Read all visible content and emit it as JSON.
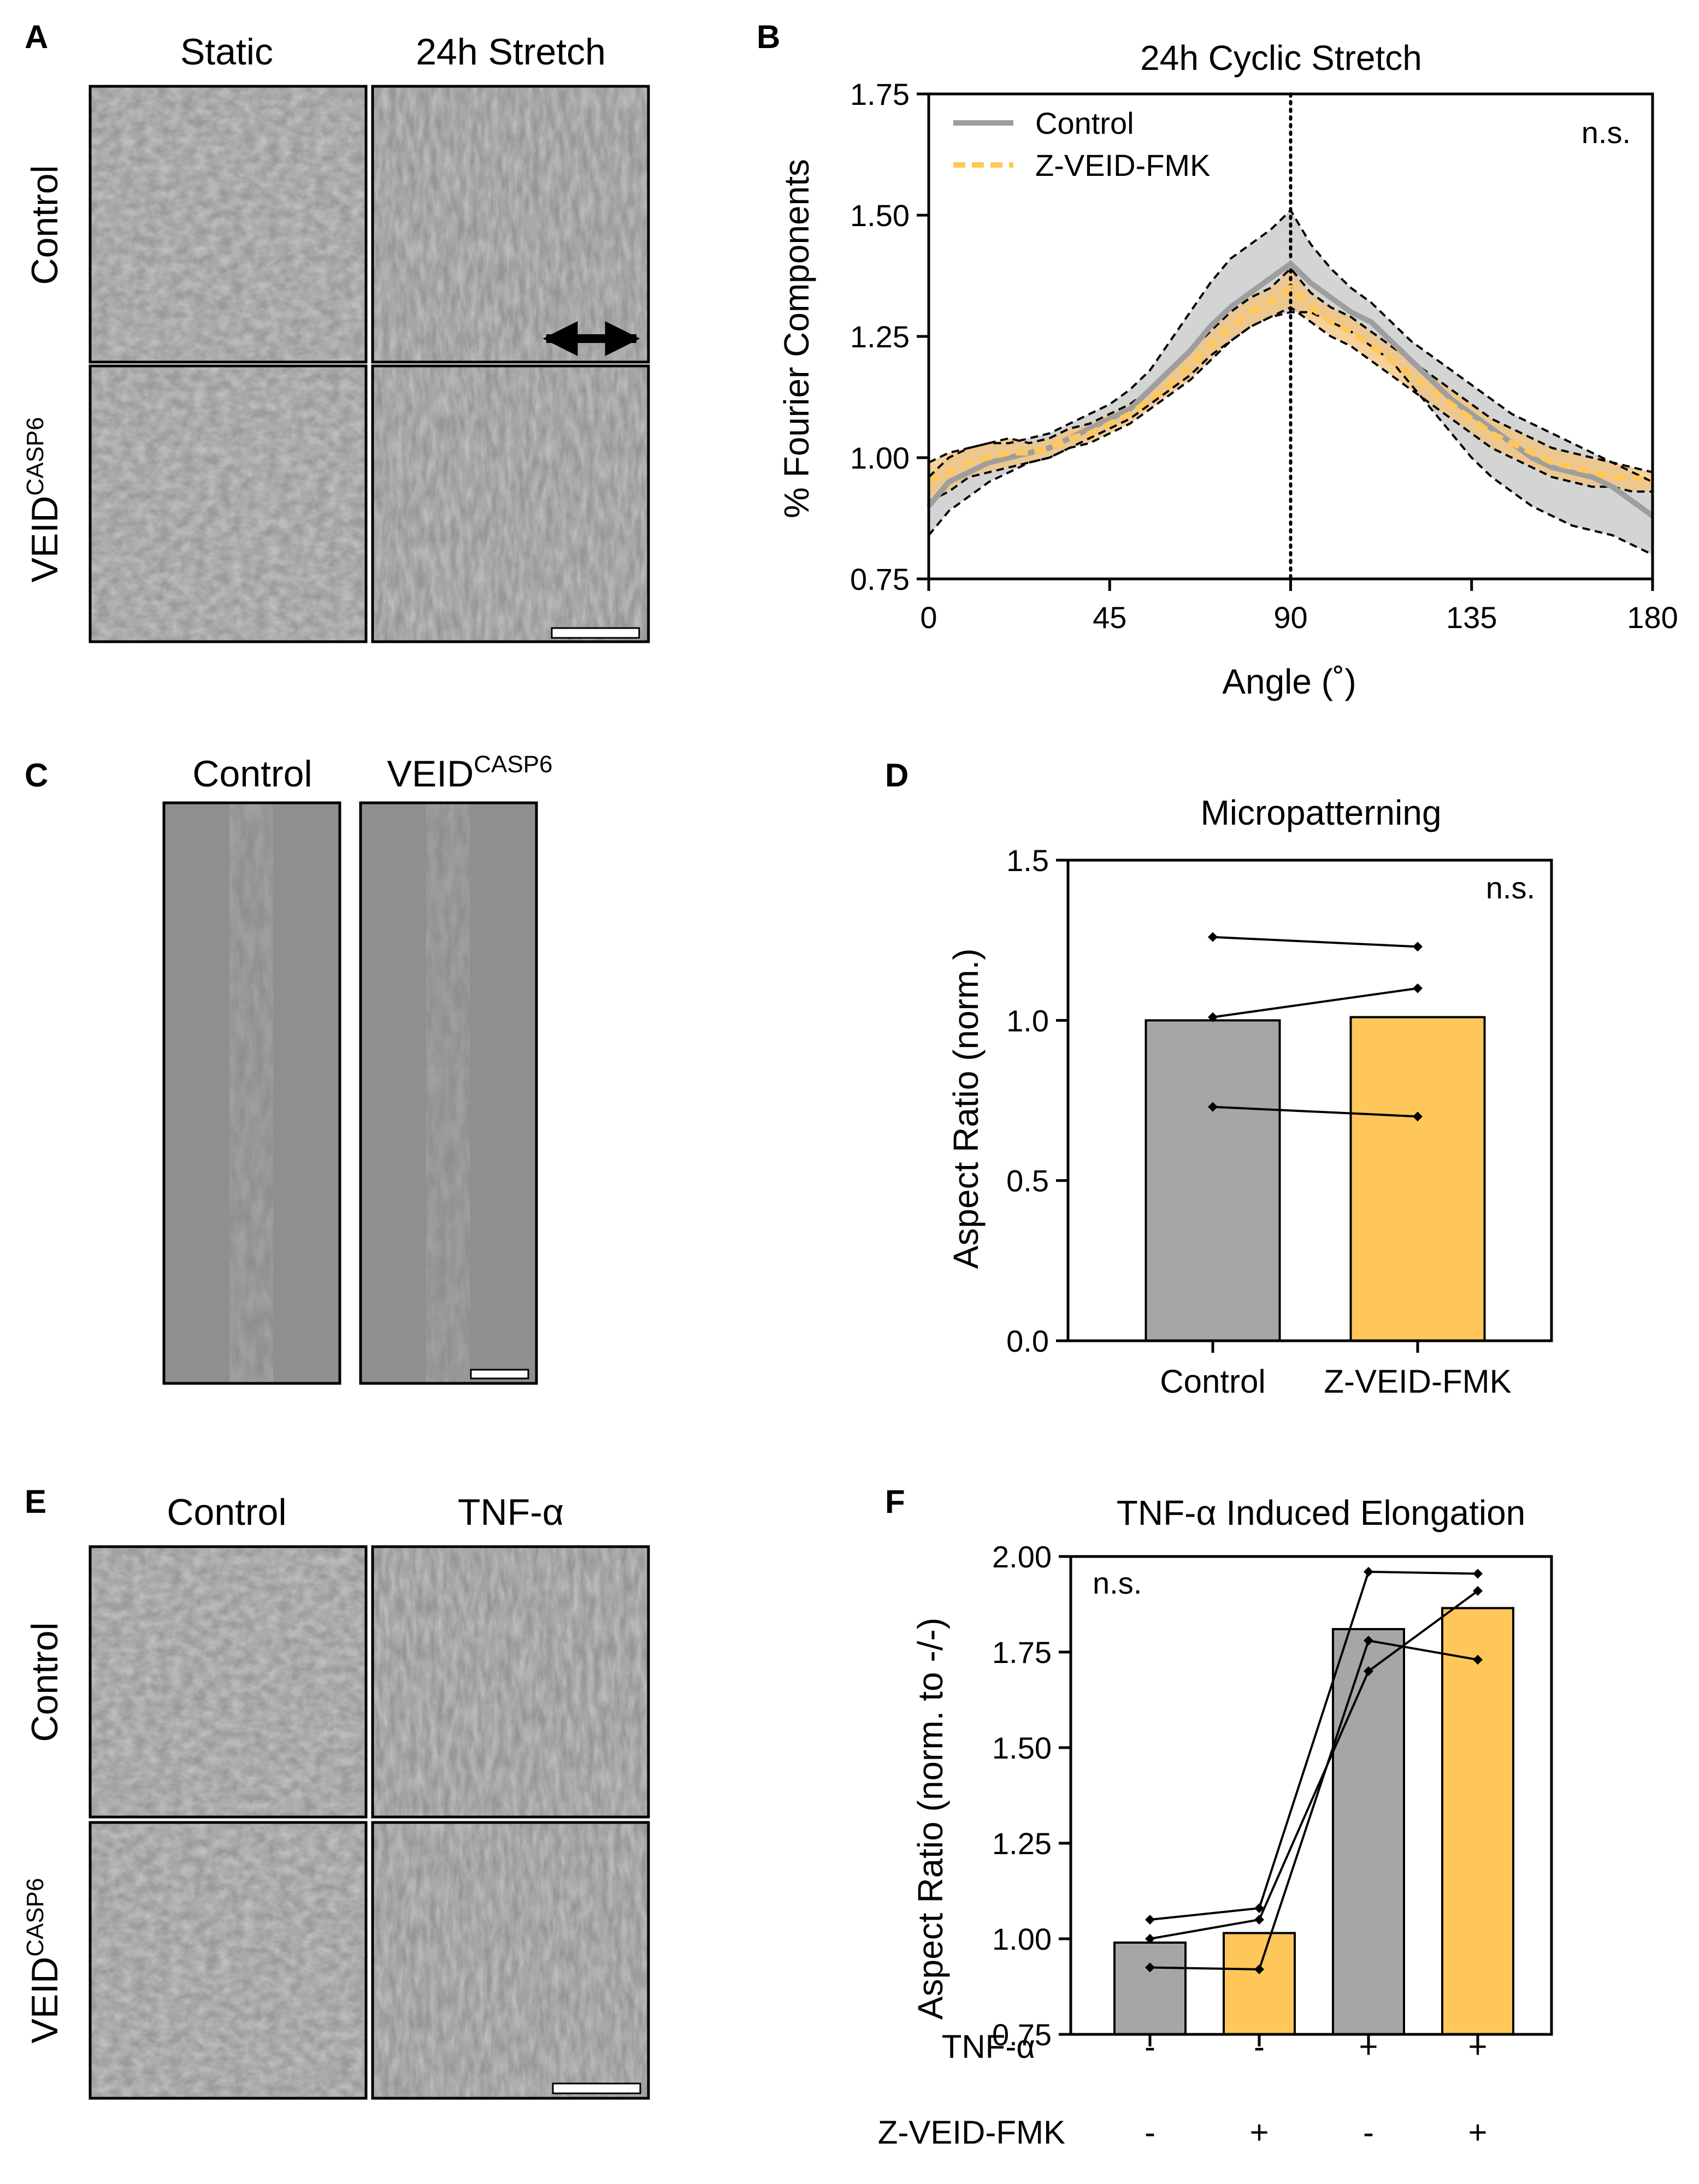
{
  "panel_letters": {
    "a": "A",
    "b": "B",
    "c": "C",
    "d": "D",
    "e": "E",
    "f": "F"
  },
  "panel_a": {
    "col_static": "Static",
    "col_stretch": "24h Stretch",
    "row_control": "Control",
    "row_veid_base": "VEID",
    "row_veid_sup": "CASP6"
  },
  "panel_c": {
    "col_control": "Control",
    "col_veid_base": "VEID",
    "col_veid_sup": "CASP6"
  },
  "panel_e": {
    "col_control": "Control",
    "col_tnf": "TNF-α",
    "row_control": "Control",
    "row_veid_base": "VEID",
    "row_veid_sup": "CASP6"
  },
  "colors": {
    "control": "#a4a7a6",
    "veid": "#ffc75a",
    "control_line": "#9e9e9e",
    "veid_line": "#ffc75a",
    "band_control": "#c3c7c6",
    "band_veid": "#f4c27a"
  },
  "chart_data": [
    {
      "id": "B",
      "type": "line",
      "title": "24h Cyclic Stretch",
      "xlabel": "Angle (˚)",
      "ylabel": "% Fourier Components",
      "xlim": [
        0,
        180
      ],
      "ylim": [
        0.75,
        1.75
      ],
      "xticks": [
        "0",
        "45",
        "90",
        "135",
        "180"
      ],
      "yticks": [
        "0.75",
        "1.00",
        "1.25",
        "1.50",
        "1.75"
      ],
      "annotation": "n.s.",
      "reference_line_x": 90,
      "legend": "top-left",
      "x": [
        0,
        5,
        10,
        15,
        20,
        25,
        30,
        35,
        40,
        45,
        50,
        55,
        60,
        65,
        70,
        75,
        80,
        85,
        90,
        95,
        100,
        105,
        110,
        115,
        120,
        125,
        130,
        135,
        140,
        145,
        150,
        155,
        160,
        165,
        170,
        175,
        180
      ],
      "series": [
        {
          "name": "Control",
          "values": [
            0.9,
            0.95,
            0.97,
            0.99,
            1.0,
            1.01,
            1.02,
            1.04,
            1.06,
            1.08,
            1.1,
            1.14,
            1.18,
            1.22,
            1.27,
            1.31,
            1.34,
            1.37,
            1.4,
            1.36,
            1.33,
            1.3,
            1.28,
            1.24,
            1.2,
            1.16,
            1.12,
            1.09,
            1.06,
            1.03,
            1.0,
            0.98,
            0.97,
            0.96,
            0.94,
            0.91,
            0.88
          ],
          "lower": [
            0.84,
            0.89,
            0.92,
            0.95,
            0.97,
            0.99,
            1.0,
            1.02,
            1.04,
            1.06,
            1.08,
            1.11,
            1.14,
            1.17,
            1.21,
            1.24,
            1.27,
            1.29,
            1.3,
            1.3,
            1.28,
            1.26,
            1.23,
            1.2,
            1.15,
            1.1,
            1.05,
            1.0,
            0.96,
            0.93,
            0.9,
            0.88,
            0.86,
            0.85,
            0.84,
            0.82,
            0.8
          ],
          "upper": [
            0.96,
            1.0,
            1.02,
            1.03,
            1.03,
            1.04,
            1.05,
            1.07,
            1.09,
            1.11,
            1.14,
            1.18,
            1.24,
            1.3,
            1.36,
            1.41,
            1.44,
            1.47,
            1.51,
            1.44,
            1.39,
            1.35,
            1.32,
            1.28,
            1.24,
            1.21,
            1.18,
            1.15,
            1.12,
            1.09,
            1.07,
            1.05,
            1.03,
            1.01,
            0.99,
            0.97,
            0.95
          ]
        },
        {
          "name": "Z-VEID-FMK",
          "values": [
            0.95,
            0.97,
            0.99,
            1.0,
            1.01,
            1.01,
            1.02,
            1.04,
            1.05,
            1.07,
            1.09,
            1.12,
            1.15,
            1.19,
            1.23,
            1.27,
            1.3,
            1.32,
            1.35,
            1.31,
            1.28,
            1.26,
            1.23,
            1.2,
            1.17,
            1.14,
            1.11,
            1.08,
            1.05,
            1.03,
            1.01,
            0.99,
            0.98,
            0.97,
            0.96,
            0.96,
            0.95
          ],
          "lower": [
            0.91,
            0.93,
            0.96,
            0.97,
            0.98,
            0.99,
            1.0,
            1.02,
            1.03,
            1.05,
            1.07,
            1.1,
            1.13,
            1.16,
            1.2,
            1.24,
            1.27,
            1.29,
            1.31,
            1.28,
            1.25,
            1.23,
            1.2,
            1.17,
            1.14,
            1.11,
            1.08,
            1.05,
            1.02,
            1.0,
            0.98,
            0.96,
            0.95,
            0.94,
            0.94,
            0.93,
            0.93
          ],
          "upper": [
            0.99,
            1.01,
            1.02,
            1.03,
            1.04,
            1.03,
            1.04,
            1.06,
            1.07,
            1.09,
            1.11,
            1.14,
            1.18,
            1.22,
            1.26,
            1.3,
            1.33,
            1.35,
            1.39,
            1.34,
            1.31,
            1.29,
            1.26,
            1.23,
            1.2,
            1.17,
            1.14,
            1.11,
            1.08,
            1.06,
            1.04,
            1.02,
            1.01,
            1.0,
            0.99,
            0.98,
            0.97
          ]
        }
      ]
    },
    {
      "id": "D",
      "type": "bar",
      "title": "Micropatterning",
      "ylabel": "Aspect Ratio (norm.)",
      "categories": [
        "Control",
        "Z-VEID-FMK"
      ],
      "values": [
        1.0,
        1.01
      ],
      "ylim": [
        0,
        1.5
      ],
      "yticks": [
        "0.0",
        "0.5",
        "1.0",
        "1.5"
      ],
      "annotation": "n.s.",
      "paired_points": [
        [
          1.26,
          1.23
        ],
        [
          1.01,
          1.1
        ],
        [
          0.73,
          0.7
        ]
      ]
    },
    {
      "id": "F",
      "type": "bar",
      "title": "TNF-α Induced Elongation",
      "ylabel": "Aspect Ratio (norm. to -/-)",
      "values": [
        0.99,
        1.015,
        1.81,
        1.865
      ],
      "ylim": [
        0.75,
        2.0
      ],
      "yticks": [
        "0.75",
        "1.00",
        "1.25",
        "1.50",
        "1.75",
        "2.00"
      ],
      "annotation": "n.s.",
      "row_labels": [
        "TNF-α",
        "Z-VEID-FMK"
      ],
      "conditions": [
        [
          "-",
          "-"
        ],
        [
          "-",
          "+"
        ],
        [
          "+",
          "-"
        ],
        [
          "+",
          "+"
        ]
      ],
      "points": [
        [
          1.05,
          1.0,
          0.925
        ],
        [
          1.08,
          1.05,
          0.92
        ],
        [
          1.96,
          1.78,
          1.7
        ],
        [
          1.955,
          1.91,
          1.73
        ]
      ],
      "lines": [
        [
          [
            1,
            1.05
          ],
          [
            2,
            1.08
          ],
          [
            3,
            1.96
          ],
          [
            4,
            1.955
          ]
        ],
        [
          [
            1,
            1.0
          ],
          [
            2,
            1.05
          ],
          [
            3,
            1.7
          ],
          [
            4,
            1.91
          ]
        ],
        [
          [
            1,
            0.925
          ],
          [
            2,
            0.92
          ],
          [
            3,
            1.78
          ],
          [
            4,
            1.73
          ]
        ]
      ]
    }
  ]
}
